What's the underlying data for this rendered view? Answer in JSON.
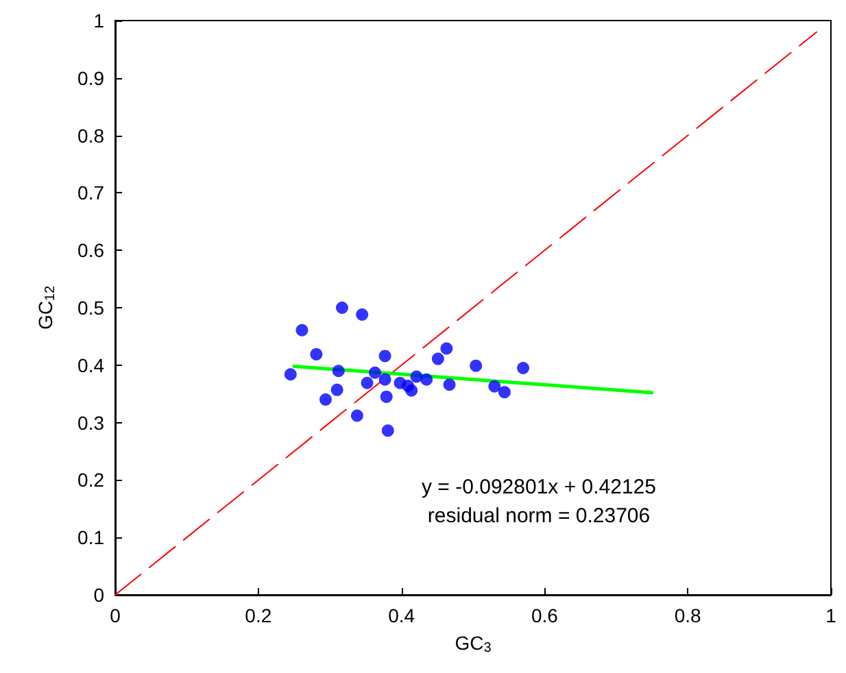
{
  "chart_data": {
    "type": "scatter",
    "xlabel": "GC$_{3}$",
    "ylabel": "GC$_{12}$",
    "xlim": [
      0,
      1
    ],
    "ylim": [
      0,
      1
    ],
    "xticks": [
      0,
      0.2,
      0.4,
      0.6,
      0.8,
      1
    ],
    "yticks": [
      0,
      0.1,
      0.2,
      0.3,
      0.4,
      0.5,
      0.6,
      0.7,
      0.8,
      0.9,
      1
    ],
    "grid": false,
    "series": [
      {
        "type": "line",
        "color": "#ff0000",
        "line_style": "dashed",
        "marker": "none",
        "x": [
          0,
          0.98
        ],
        "values": [
          0,
          0.98
        ]
      },
      {
        "color": "#0000ff",
        "marker": "circle",
        "x": [
          0.245,
          0.261,
          0.281,
          0.317,
          0.345,
          0.377,
          0.463,
          0.451,
          0.504,
          0.57,
          0.312,
          0.363,
          0.421,
          0.377,
          0.435,
          0.352,
          0.398,
          0.409,
          0.414,
          0.467,
          0.53,
          0.544,
          0.31,
          0.294,
          0.379,
          0.338,
          0.381
        ],
        "values": [
          0.384,
          0.461,
          0.419,
          0.5,
          0.488,
          0.416,
          0.429,
          0.411,
          0.399,
          0.395,
          0.39,
          0.387,
          0.38,
          0.375,
          0.375,
          0.369,
          0.369,
          0.364,
          0.356,
          0.366,
          0.363,
          0.353,
          0.357,
          0.34,
          0.345,
          0.312,
          0.286
        ]
      },
      {
        "type": "line",
        "color": "#00ff00",
        "line_style": "solid",
        "marker": "none",
        "x": [
          0.25,
          0.75
        ],
        "values": [
          0.398,
          0.352
        ]
      }
    ],
    "annotations": [
      "y = -0.092801x + 0.42125",
      "residual norm = 0.23706"
    ]
  }
}
